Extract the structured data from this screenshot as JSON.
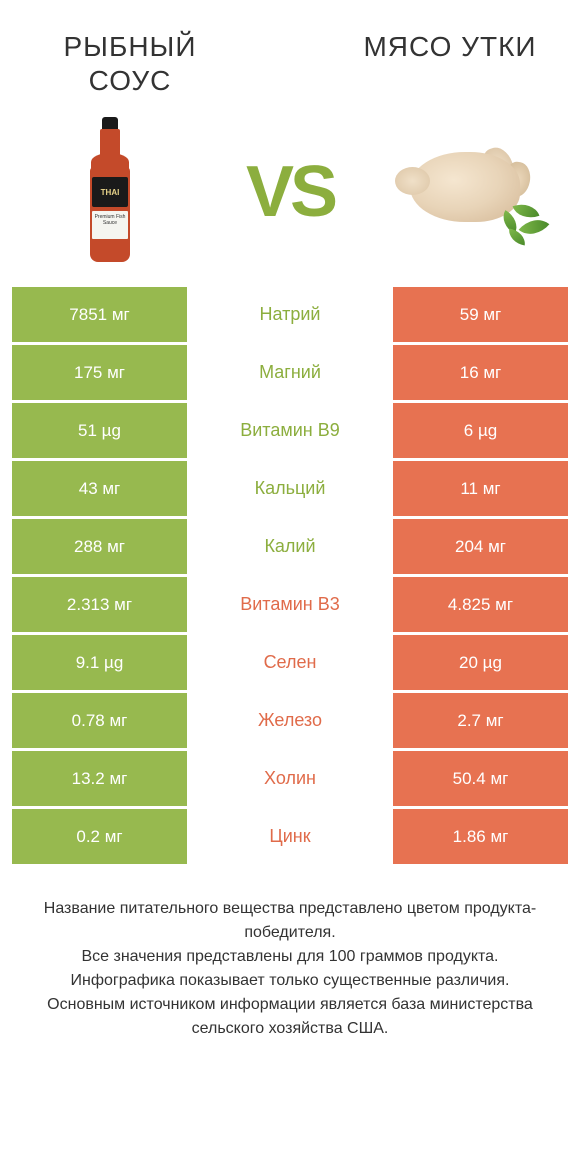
{
  "colors": {
    "green": "#97b94f",
    "orange": "#e77251",
    "green_text": "#8cae3e",
    "orange_text": "#e06b4a",
    "background": "#ffffff",
    "body_text": "#333333"
  },
  "typography": {
    "title_fontsize": 28,
    "vs_fontsize": 72,
    "cell_fontsize": 17,
    "label_fontsize": 18,
    "footer_fontsize": 16
  },
  "header": {
    "left_title": "РЫБНЫЙ СОУС",
    "right_title": "МЯСО УТКИ",
    "vs": "VS"
  },
  "bottle_label": "THAI",
  "bottle_sublabel": "Premium Fish Sauce",
  "rows": [
    {
      "left": "7851 мг",
      "label": "Натрий",
      "right": "59 мг",
      "winner": "left"
    },
    {
      "left": "175 мг",
      "label": "Магний",
      "right": "16 мг",
      "winner": "left"
    },
    {
      "left": "51 µg",
      "label": "Витамин B9",
      "right": "6 µg",
      "winner": "left"
    },
    {
      "left": "43 мг",
      "label": "Кальций",
      "right": "11 мг",
      "winner": "left"
    },
    {
      "left": "288 мг",
      "label": "Калий",
      "right": "204 мг",
      "winner": "left"
    },
    {
      "left": "2.313 мг",
      "label": "Витамин B3",
      "right": "4.825 мг",
      "winner": "right"
    },
    {
      "left": "9.1 µg",
      "label": "Селен",
      "right": "20 µg",
      "winner": "right"
    },
    {
      "left": "0.78 мг",
      "label": "Железо",
      "right": "2.7 мг",
      "winner": "right"
    },
    {
      "left": "13.2 мг",
      "label": "Холин",
      "right": "50.4 мг",
      "winner": "right"
    },
    {
      "left": "0.2 мг",
      "label": "Цинк",
      "right": "1.86 мг",
      "winner": "right"
    }
  ],
  "footer": {
    "line1": "Название питательного вещества представлено цветом продукта-победителя.",
    "line2": "Все значения представлены для 100 граммов продукта.",
    "line3": "Инфографика показывает только существенные различия.",
    "line4": "Основным источником информации является база министерства сельского хозяйства США."
  }
}
